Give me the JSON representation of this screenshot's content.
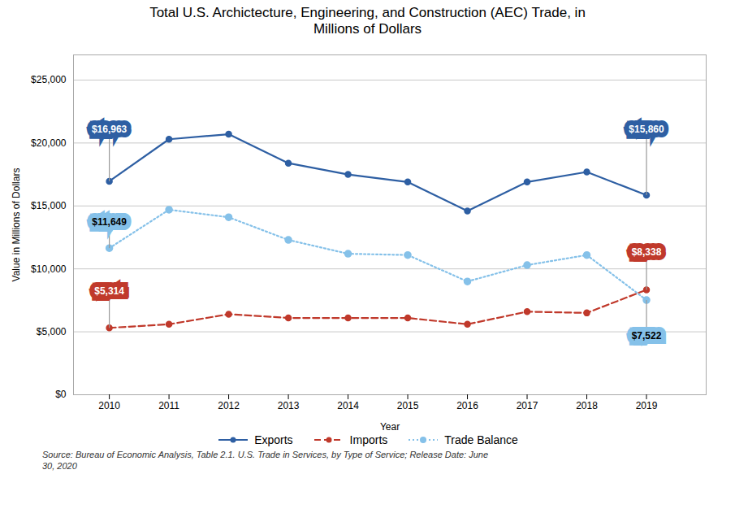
{
  "chart_data": {
    "type": "line",
    "title": "Total U.S. Archictecture, Engineering, and Construction (AEC) Trade, in\nMillions of Dollars",
    "xlabel": "Year",
    "ylabel": "Value in Millions of Dollars",
    "caption": "Source: Bureau of Economic Analysis, Table 2.1. U.S. Trade in Services, by Type of Service; Release Date: June\n30, 2020",
    "x": [
      2010,
      2011,
      2012,
      2013,
      2014,
      2015,
      2016,
      2017,
      2018,
      2019
    ],
    "series": [
      {
        "name": "Exports",
        "color": "#2E5FA3",
        "marker": "circle",
        "line_style": "solid",
        "values": [
          16963,
          20300,
          20700,
          18400,
          17500,
          16900,
          14600,
          16900,
          17700,
          15860
        ]
      },
      {
        "name": "Imports",
        "color": "#C0392B",
        "marker": "circle",
        "line_style": "dashed",
        "values": [
          5314,
          5600,
          6400,
          6100,
          6100,
          6100,
          5600,
          6600,
          6500,
          8338
        ]
      },
      {
        "name": "Trade Balance",
        "color": "#85C1E9",
        "marker": "circle",
        "line_style": "dotted",
        "values": [
          11649,
          14700,
          14100,
          12300,
          11200,
          11100,
          9000,
          10300,
          11100,
          7522
        ]
      }
    ],
    "xlim": [
      2009.4,
      2020.0
    ],
    "xticks": [
      2010,
      2011,
      2012,
      2013,
      2014,
      2015,
      2016,
      2017,
      2018,
      2019
    ],
    "ylim": [
      0,
      27000
    ],
    "yticks": [
      {
        "value": 0,
        "label": "$0"
      },
      {
        "value": 5000,
        "label": "$5,000"
      },
      {
        "value": 10000,
        "label": "$10,000"
      },
      {
        "value": 15000,
        "label": "$15,000"
      },
      {
        "value": 20000,
        "label": "$20,000"
      },
      {
        "value": 25000,
        "label": "$25,000"
      }
    ],
    "grid": "y",
    "legend": "bottom",
    "annotations": [
      {
        "text": "$16,963",
        "x": 2010,
        "y": 16963,
        "text_x": 2010,
        "text_y": 21100,
        "color": "#2E5FA3"
      },
      {
        "text": "$15,860",
        "x": 2019,
        "y": 15860,
        "text_x": 2019,
        "text_y": 21100,
        "color": "#2E5FA3"
      },
      {
        "text": "$5,314",
        "x": 2010,
        "y": 5314,
        "text_x": 2010,
        "text_y": 8200,
        "color": "#C0392B"
      },
      {
        "text": "$8,338",
        "x": 2019,
        "y": 8338,
        "text_x": 2019,
        "text_y": 11300,
        "color": "#C0392B"
      },
      {
        "text": "$11,649",
        "x": 2010,
        "y": 11649,
        "text_x": 2010,
        "text_y": 13700,
        "color": "#85C1E9"
      },
      {
        "text": "$7,522",
        "x": 2019,
        "y": 7522,
        "text_x": 2019,
        "text_y": 4700,
        "color": "#85C1E9"
      }
    ]
  }
}
